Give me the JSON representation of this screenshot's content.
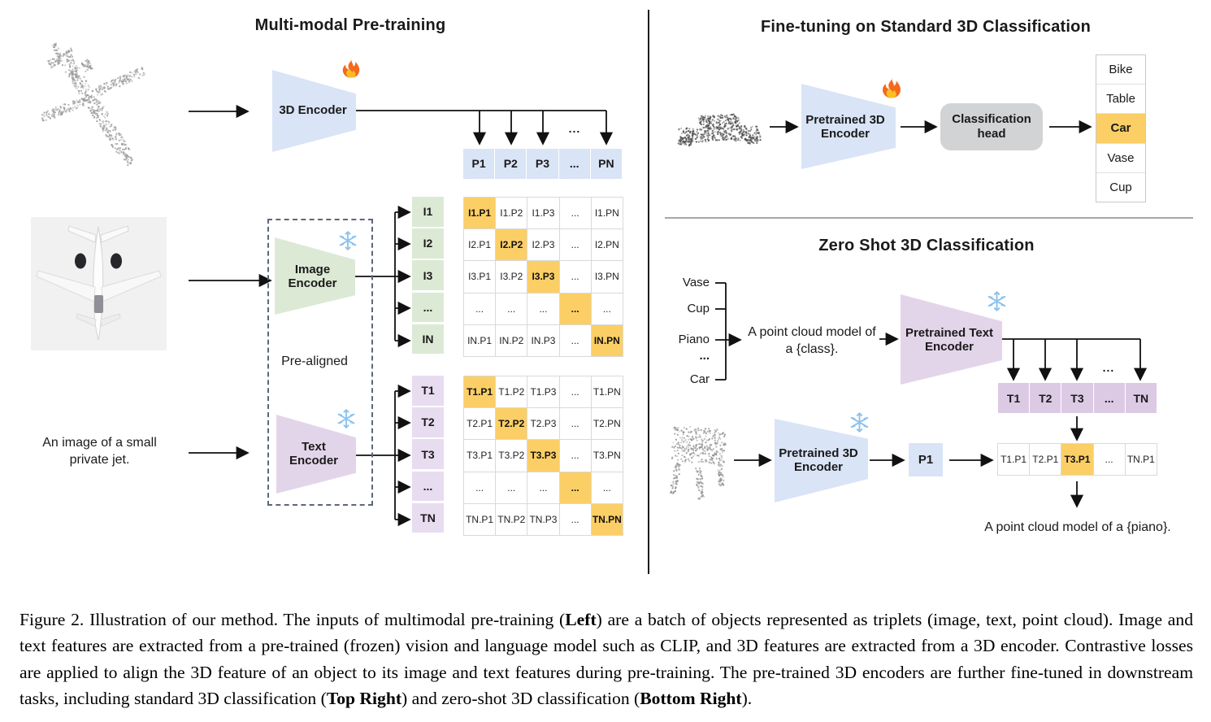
{
  "left_panel": {
    "title": "Multi-modal Pre-training",
    "inputs": {
      "point_cloud": "airplane-point-cloud",
      "image": "airplane-top-view-image",
      "text_caption": "An image of a small private jet."
    },
    "encoder_3d": {
      "label": "3D Encoder",
      "state_icon": "fire-icon"
    },
    "image_encoder": {
      "label": "Image Encoder",
      "state_icon": "snowflake-icon"
    },
    "text_encoder": {
      "label": "Text Encoder",
      "state_icon": "snowflake-icon"
    },
    "pre_aligned_label": "Pre-aligned",
    "dots": "...",
    "p_row": [
      "P1",
      "P2",
      "P3",
      "...",
      "PN"
    ],
    "image_matrix": {
      "row_labels": [
        "I1",
        "I2",
        "I3",
        "...",
        "IN"
      ],
      "rows": [
        [
          "I1.P1",
          "I1.P2",
          "I1.P3",
          "...",
          "I1.PN"
        ],
        [
          "I2.P1",
          "I2.P2",
          "I2.P3",
          "...",
          "I2.PN"
        ],
        [
          "I3.P1",
          "I3.P2",
          "I3.P3",
          "...",
          "I3.PN"
        ],
        [
          "...",
          "...",
          "...",
          "...",
          "..."
        ],
        [
          "IN.P1",
          "IN.P2",
          "IN.P3",
          "...",
          "IN.PN"
        ]
      ],
      "highlight": "diagonal"
    },
    "text_matrix": {
      "row_labels": [
        "T1",
        "T2",
        "T3",
        "...",
        "TN"
      ],
      "rows": [
        [
          "T1.P1",
          "T1.P2",
          "T1.P3",
          "...",
          "T1.PN"
        ],
        [
          "T2.P1",
          "T2.P2",
          "T2.P3",
          "...",
          "T2.PN"
        ],
        [
          "T3.P1",
          "T3.P2",
          "T3.P3",
          "...",
          "T3.PN"
        ],
        [
          "...",
          "...",
          "...",
          "...",
          "..."
        ],
        [
          "TN.P1",
          "TN.P2",
          "TN.P3",
          "...",
          "TN.PN"
        ]
      ],
      "highlight": "diagonal"
    }
  },
  "top_right_panel": {
    "title": "Fine-tuning on Standard 3D Classification",
    "input": "car-point-cloud",
    "encoder": {
      "label": "Pretrained 3D Encoder",
      "state_icon": "fire-icon"
    },
    "head": {
      "label": "Classification head"
    },
    "classes": [
      "Bike",
      "Table",
      "Car",
      "Vase",
      "Cup"
    ],
    "predicted_class": "Car"
  },
  "bottom_right_panel": {
    "title": "Zero Shot 3D Classification",
    "classes": [
      "Vase",
      "Cup",
      "Piano",
      "...",
      "Car"
    ],
    "prompt": "A point cloud model of a {class}.",
    "prompt_line1": "A point cloud model of",
    "prompt_line2": "a {class}.",
    "text_encoder": {
      "label": "Pretrained Text Encoder",
      "state_icon": "snowflake-icon"
    },
    "encoder_3d": {
      "label": "Pretrained 3D Encoder",
      "state_icon": "snowflake-icon"
    },
    "input": "piano-point-cloud",
    "p_box": "P1",
    "dots": "...",
    "t_row": [
      "T1",
      "T2",
      "T3",
      "...",
      "TN"
    ],
    "result_row": [
      "T1.P1",
      "T2.P1",
      "T3.P1",
      "...",
      "TN.P1"
    ],
    "result_highlight": "T3.P1",
    "output_caption": "A point cloud model of a {piano}."
  },
  "caption": {
    "segments": [
      {
        "t": "Figure 2. Illustration of our method. The inputs of multimodal pre-training (",
        "b": false
      },
      {
        "t": "Left",
        "b": true
      },
      {
        "t": ") are a batch of objects represented as triplets (image, text, point cloud). Image and text features are extracted from a pre-trained (frozen) vision and language model such as CLIP, and 3D features are extracted from a 3D encoder. Contrastive losses are applied to align the 3D feature of an object to its image and text features during pre-training. The pre-trained 3D encoders are further fine-tuned in downstream tasks, including standard 3D classification (",
        "b": false
      },
      {
        "t": "Top Right",
        "b": true
      },
      {
        "t": ") and zero-shot 3D classification (",
        "b": false
      },
      {
        "t": "Bottom Right",
        "b": true
      },
      {
        "t": ").",
        "b": false
      }
    ]
  },
  "colors": {
    "feature_blue": "#d9e4f6",
    "image_green": "#dcead5",
    "text_purple": "#e7dcf0",
    "highlight_orange": "#fbcf66",
    "head_gray": "#d2d3d5"
  },
  "icons": {
    "trainable": "fire-icon",
    "frozen": "snowflake-icon"
  }
}
